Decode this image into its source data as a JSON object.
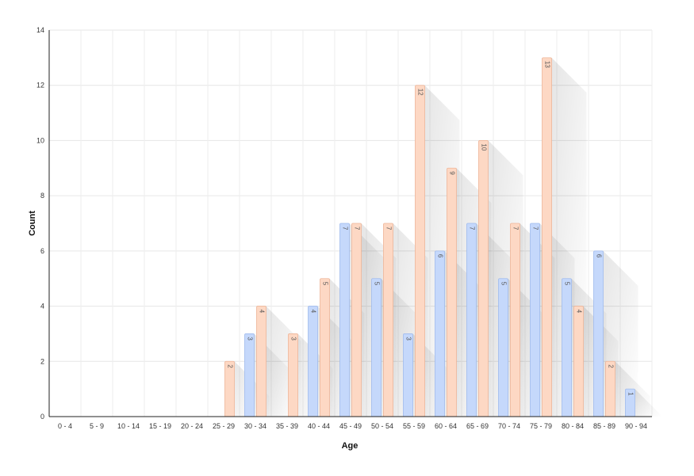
{
  "chart_data": {
    "type": "bar",
    "xlabel": "Age",
    "ylabel": "Count",
    "ylim": [
      0,
      14
    ],
    "yticks": [
      0,
      2,
      4,
      6,
      8,
      10,
      12,
      14
    ],
    "grid": true,
    "legend": "none",
    "categories": [
      "0 - 4",
      "5 - 9",
      "10 - 14",
      "15 - 19",
      "20 - 24",
      "25 - 29",
      "30 - 34",
      "35 - 39",
      "40 - 44",
      "45 - 49",
      "50 - 54",
      "55 - 59",
      "60 - 64",
      "65 - 69",
      "70 - 74",
      "75 - 79",
      "80 - 84",
      "85 - 89",
      "90 - 94"
    ],
    "series": [
      {
        "color": "#c5d8fb",
        "stroke": "#9fbbee",
        "values": [
          0,
          0,
          0,
          0,
          0,
          0,
          3,
          0,
          4,
          7,
          5,
          3,
          6,
          7,
          5,
          7,
          5,
          6,
          1
        ]
      },
      {
        "color": "#fdd8c4",
        "stroke": "#eeb598",
        "values": [
          0,
          0,
          0,
          0,
          0,
          2,
          4,
          3,
          5,
          7,
          7,
          12,
          9,
          10,
          7,
          13,
          4,
          2,
          0
        ]
      }
    ]
  }
}
